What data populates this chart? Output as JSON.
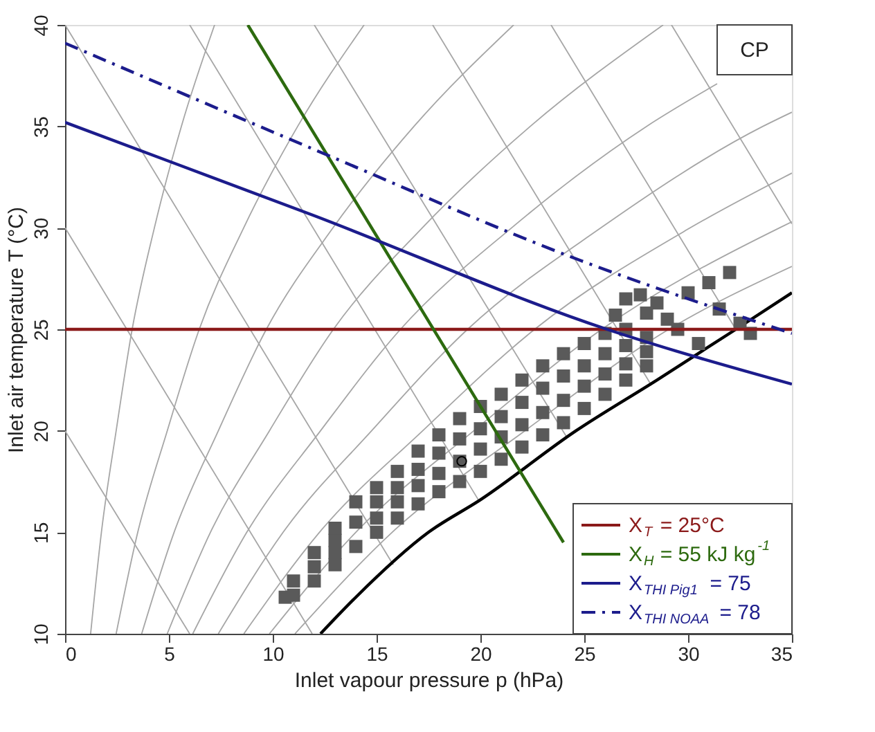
{
  "chart_data": {
    "type": "line",
    "xlabel": "Inlet vapour pressure p (hPa)",
    "ylabel": "Inlet air temperature T (°C)",
    "xlim": [
      0,
      35
    ],
    "ylim": [
      10,
      40
    ],
    "xticks": [
      0,
      5,
      10,
      15,
      20,
      25,
      30,
      35
    ],
    "yticks": [
      10,
      15,
      20,
      25,
      30,
      35,
      40
    ],
    "grid": false,
    "legend": "bottom right",
    "annotations": [
      "CP"
    ],
    "series": [
      {
        "type": "line",
        "color": "#a6a6a6",
        "x": [
          1.23,
          1.75,
          2.46,
          3.23,
          4.3,
          5.6,
          7.2
        ],
        "values": [
          10,
          15,
          20,
          25,
          30,
          35,
          40
        ]
      },
      {
        "type": "line",
        "color": "#a6a6a6",
        "x": [
          2.46,
          3.5,
          4.92,
          6.46,
          8.6,
          11.2,
          14.4
        ],
        "values": [
          10,
          15,
          20,
          25,
          30,
          35,
          40
        ]
      },
      {
        "type": "line",
        "color": "#a6a6a6",
        "x": [
          3.69,
          5.25,
          7.38,
          9.69,
          12.9,
          16.8,
          21.6
        ],
        "values": [
          10,
          15,
          20,
          25,
          30,
          35,
          40
        ]
      },
      {
        "type": "line",
        "color": "#a6a6a6",
        "x": [
          4.92,
          7.0,
          9.84,
          12.92,
          17.2,
          22.4,
          28.8
        ],
        "values": [
          10,
          15,
          20,
          25,
          30,
          35,
          40
        ]
      },
      {
        "type": "line",
        "color": "#a6a6a6",
        "x": [
          6.15,
          8.75,
          12.3,
          16.15,
          21.5,
          28,
          31.4
        ],
        "values": [
          10,
          15,
          20,
          25,
          30,
          35,
          37.1
        ]
      },
      {
        "type": "line",
        "color": "#a6a6a6",
        "x": [
          7.38,
          10.5,
          14.76,
          19.38,
          25.8,
          33.6,
          35
        ],
        "values": [
          10,
          15,
          20,
          25,
          30,
          35,
          35.7
        ]
      },
      {
        "type": "line",
        "color": "#a6a6a6",
        "x": [
          8.61,
          12.25,
          17.22,
          22.61,
          30.1,
          35
        ],
        "values": [
          10,
          15,
          20,
          25,
          30,
          32.7
        ]
      },
      {
        "type": "line",
        "color": "#a6a6a6",
        "x": [
          9.84,
          14,
          19.68,
          25.84,
          34.4,
          35
        ],
        "values": [
          10,
          15,
          20,
          25,
          30,
          30.3
        ]
      },
      {
        "type": "line",
        "color": "#a6a6a6",
        "x": [
          11.07,
          15.75,
          22.14,
          29.07,
          35
        ],
        "values": [
          10,
          15,
          20,
          25,
          28.1
        ]
      },
      {
        "type": "line",
        "color": "#a6a6a6",
        "x": [
          0,
          6.0
        ],
        "values": [
          20,
          10
        ]
      },
      {
        "type": "line",
        "color": "#a6a6a6",
        "x": [
          0,
          11.9
        ],
        "values": [
          30,
          10
        ]
      },
      {
        "type": "line",
        "color": "#a6a6a6",
        "x": [
          0,
          15.8
        ],
        "values": [
          40,
          13.4
        ]
      },
      {
        "type": "line",
        "color": "#a6a6a6",
        "x": [
          6.0,
          19.9
        ],
        "values": [
          40,
          16.6
        ]
      },
      {
        "type": "line",
        "color": "#a6a6a6",
        "x": [
          12.0,
          24.15
        ],
        "values": [
          40,
          19.7
        ]
      },
      {
        "type": "line",
        "color": "#a6a6a6",
        "x": [
          17.7,
          28.2
        ],
        "values": [
          40,
          22.3
        ]
      },
      {
        "type": "line",
        "color": "#a6a6a6",
        "x": [
          23.4,
          32.3
        ],
        "values": [
          40,
          25
        ]
      },
      {
        "type": "line",
        "color": "#a6a6a6",
        "x": [
          29.2,
          35
        ],
        "values": [
          40,
          30.2
        ]
      },
      {
        "type": "line",
        "color": "#000000",
        "x": [
          12.3,
          14,
          17.5,
          20,
          24.6,
          28.5,
          32.3,
          35
        ],
        "values": [
          10,
          11.8,
          15,
          16.6,
          20,
          22.5,
          25,
          26.8
        ]
      },
      {
        "type": "scatter",
        "marker": "square",
        "color": "#5a5a5a",
        "x": [
          10.6,
          11,
          11,
          12,
          12,
          12,
          13,
          13,
          13,
          13,
          14,
          14,
          14,
          15,
          15,
          15,
          15,
          16,
          16,
          16,
          16,
          17,
          17,
          17,
          17,
          18,
          18,
          18,
          18,
          19,
          19,
          19,
          19,
          20,
          20,
          20,
          20,
          21,
          21,
          21,
          21,
          22,
          22,
          22,
          22,
          23,
          23,
          23,
          23,
          24,
          24,
          24,
          24,
          25,
          25,
          25,
          25,
          26,
          26,
          26,
          26,
          27,
          27,
          27,
          27,
          28,
          28,
          28,
          26.5,
          27.7,
          28.5,
          29,
          29.5,
          30.5,
          30,
          31,
          32,
          31.5,
          32.5,
          33,
          27,
          28
        ],
        "values": [
          11.8,
          11.9,
          12.6,
          12.6,
          13.3,
          14.0,
          13.4,
          14.0,
          14.6,
          15.2,
          14.3,
          15.5,
          16.5,
          15.0,
          15.7,
          16.5,
          17.2,
          15.7,
          16.5,
          17.2,
          18.0,
          16.4,
          17.3,
          18.1,
          19.0,
          17.0,
          17.9,
          18.9,
          19.8,
          17.5,
          18.5,
          19.6,
          20.6,
          18.0,
          19.1,
          20.1,
          21.2,
          18.6,
          19.7,
          20.7,
          21.8,
          19.2,
          20.3,
          21.4,
          22.5,
          19.8,
          20.9,
          22.1,
          23.2,
          20.4,
          21.5,
          22.7,
          23.8,
          21.1,
          22.2,
          23.2,
          24.3,
          21.8,
          22.8,
          23.8,
          24.8,
          22.5,
          23.3,
          24.2,
          25.0,
          23.2,
          23.9,
          24.6,
          25.7,
          26.7,
          26.3,
          25.5,
          25.0,
          24.3,
          26.8,
          27.3,
          27.8,
          26.0,
          25.3,
          24.8,
          26.5,
          25.8
        ]
      },
      {
        "type": "scatter",
        "marker": "circle",
        "color": "#000000",
        "x": [
          19.1
        ],
        "values": [
          18.5
        ]
      },
      {
        "type": "line",
        "name": "X$_{T}$ = 25°C",
        "color": "#8b1a1a",
        "line_style": "solid",
        "x": [
          0,
          35
        ],
        "values": [
          25,
          25
        ]
      },
      {
        "type": "line",
        "name": "X$_{H}$ = 55 kJ kg$^{-1}$",
        "color": "#2d6a0f",
        "line_style": "solid",
        "x": [
          8.8,
          24
        ],
        "values": [
          40,
          14.5
        ]
      },
      {
        "type": "line",
        "name": "X$_{THI Pig1}$ = 75",
        "color": "#1c1c8c",
        "line_style": "solid",
        "x": [
          0,
          12,
          26.1,
          35
        ],
        "values": [
          35.2,
          30.6,
          25.0,
          22.3
        ]
      },
      {
        "type": "line",
        "name": "X$_{THI NOAA}$ = 78",
        "color": "#1c1c8c",
        "line_style": "dashed",
        "x": [
          0,
          12.6,
          24.8,
          35
        ],
        "values": [
          39.1,
          33.6,
          28.4,
          24.8
        ]
      }
    ]
  }
}
